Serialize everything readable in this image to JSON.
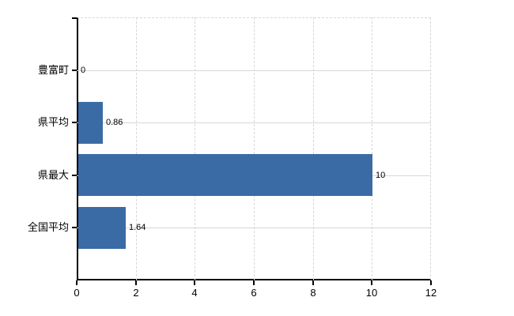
{
  "chart_data": {
    "type": "bar",
    "orientation": "horizontal",
    "title": "",
    "xlabel": "",
    "ylabel": "",
    "categories": [
      "豊富町",
      "県平均",
      "県最大",
      "全国平均"
    ],
    "values": [
      0,
      0.86,
      10,
      1.64
    ],
    "value_labels": [
      "0",
      "0.86",
      "10",
      "1.64"
    ],
    "xlim": [
      0,
      12
    ],
    "x_ticks": [
      0,
      2,
      4,
      6,
      8,
      10,
      12
    ],
    "x_tick_labels": [
      "0",
      "2",
      "4",
      "6",
      "8",
      "10",
      "12"
    ],
    "grid": true,
    "legend": "none",
    "colors": {
      "bar": "#3a6ba5",
      "axis": "#000000",
      "gridline_vertical": "#d8d8d8",
      "gridline_horizontal": "#d5d9d2",
      "text": "#000000",
      "background": "#ffffff"
    }
  }
}
